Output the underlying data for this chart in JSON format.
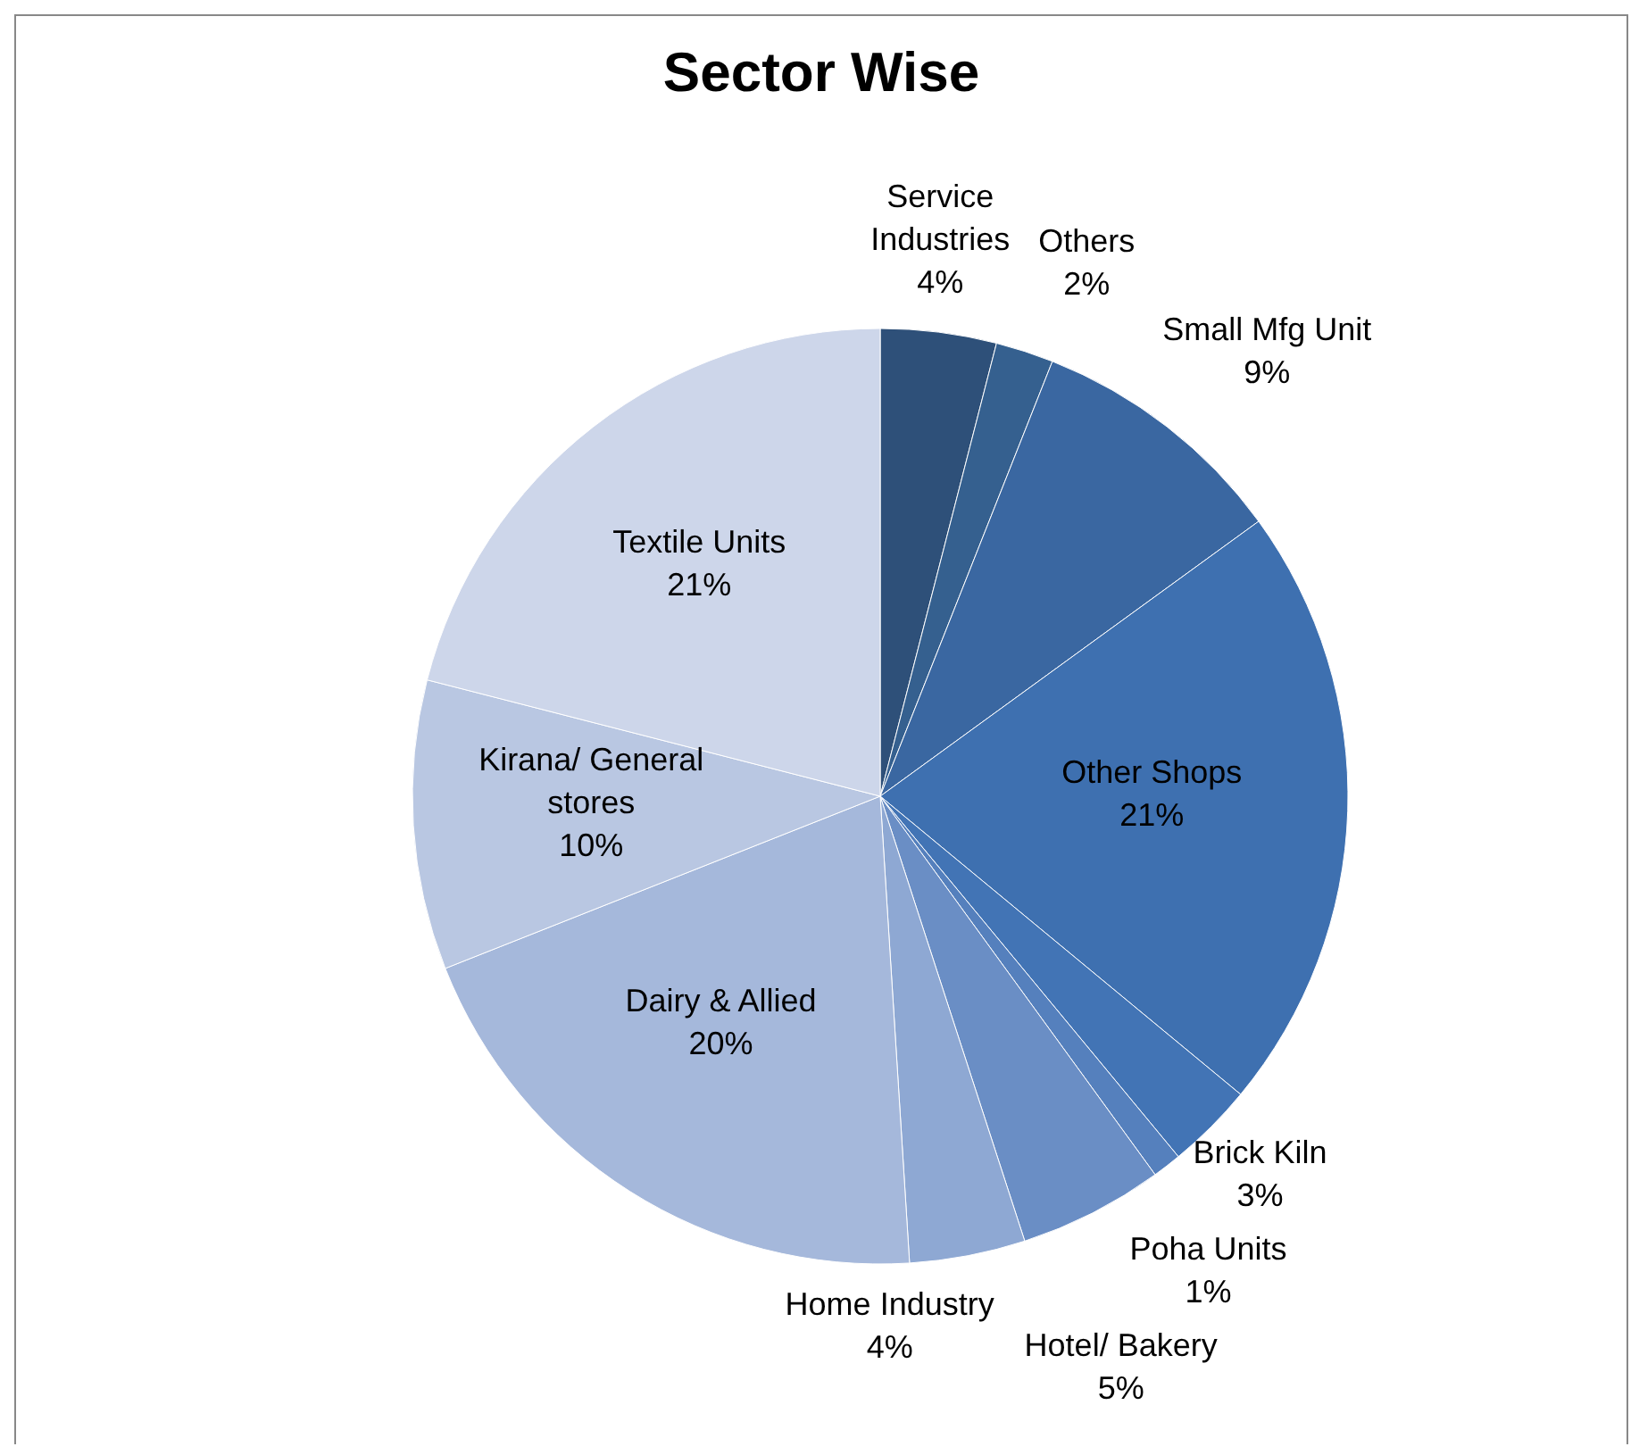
{
  "chart_data": {
    "type": "pie",
    "title": "Sector Wise",
    "categories": [
      "Service Industries",
      "Others",
      "Small Mfg Unit",
      "Other Shops",
      "Brick Kiln",
      "Poha Units",
      "Hotel/ Bakery",
      "Home Industry",
      "Dairy & Allied",
      "Kirana/ General stores",
      "Textile Units"
    ],
    "values": [
      4,
      2,
      9,
      21,
      3,
      1,
      5,
      4,
      20,
      10,
      21
    ],
    "value_labels": [
      "4%",
      "2%",
      "9%",
      "21%",
      "3%",
      "1%",
      "5%",
      "4%",
      "20%",
      "10%",
      "21%"
    ],
    "colors": [
      "#2e5079",
      "#35608f",
      "#3a67a1",
      "#3e70b0",
      "#4274b5",
      "#5580bd",
      "#6a8ec5",
      "#8ea8d3",
      "#a5b8db",
      "#b9c7e2",
      "#cdd6ea"
    ],
    "legend": false
  }
}
